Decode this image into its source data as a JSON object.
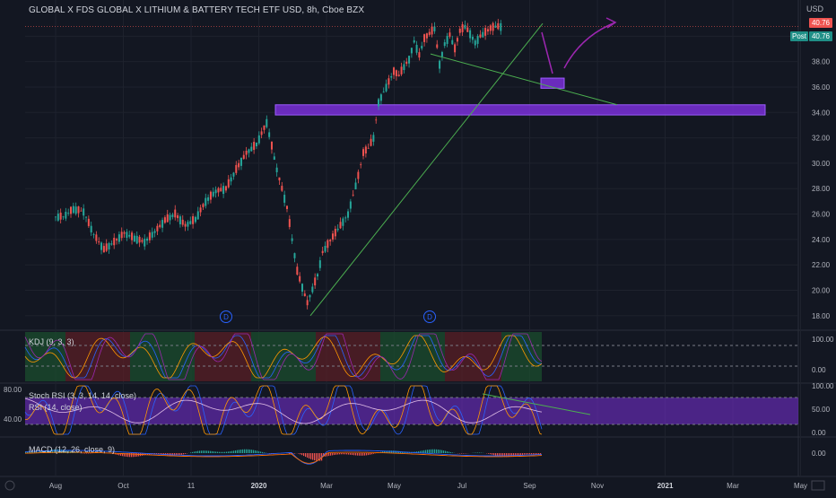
{
  "header": {
    "title": "GLOBAL X FDS GLOBAL X LITHIUM & BATTERY TECH ETF USD, 8h, Cboe BZX",
    "currency": "USD"
  },
  "price_tags": {
    "last": "40.76",
    "post_label": "Post",
    "post_value": "40.76"
  },
  "indicators": {
    "kdj": "KDJ (9, 3, 3)",
    "stoch_rsi": "Stoch RSI (3, 3, 14, 14, close)",
    "rsi": "RSI (14, close)",
    "macd": "MACD (12, 26, close, 9)",
    "rsi_left_upper": "80.00",
    "rsi_left_lower": "40.00"
  },
  "events": [
    {
      "label": "D",
      "month": "Dec"
    },
    {
      "label": "D",
      "month": "Jun"
    }
  ],
  "colors": {
    "background": "#131722",
    "up": "#26a69a",
    "down": "#ef5350",
    "zone": "#7a2fd8",
    "trendline": "#4caf50",
    "kdj_k": "#2962ff",
    "kdj_d": "#ff9800",
    "kdj_j": "#9c27b0",
    "macd_line": "#2962ff",
    "signal_line": "#ff6d00"
  },
  "chart_data": {
    "type": "candlestick",
    "title": "GLOBAL X FDS GLOBAL X LITHIUM & BATTERY TECH ETF USD, 8h, Cboe BZX",
    "x_tick_labels": [
      "Aug",
      "Oct",
      "11",
      "2020",
      "Mar",
      "May",
      "Jul",
      "Sep",
      "Nov",
      "2021",
      "Mar",
      "May"
    ],
    "y_ticks": [
      18.0,
      20.0,
      22.0,
      24.0,
      26.0,
      28.0,
      30.0,
      32.0,
      34.0,
      36.0,
      38.0,
      40.0
    ],
    "ylim": [
      17.0,
      42.0
    ],
    "last_price": 40.76,
    "series": [
      {
        "name": "price",
        "month_index": [
          0,
          0.3,
          0.6,
          0.9,
          1.2,
          1.5,
          1.8,
          2.1,
          2.4,
          2.7,
          3.0,
          3.3,
          3.6,
          3.9,
          4.2,
          4.5,
          4.8,
          5.1,
          5.4,
          5.7,
          6.0,
          6.3,
          6.6,
          6.9,
          7.2,
          7.5,
          7.8,
          7.95,
          8.1,
          8.25,
          8.4,
          8.55,
          8.7,
          8.85,
          9.0,
          9.15,
          9.3,
          9.45,
          9.6,
          9.75,
          9.9,
          10.05,
          10.2,
          10.35,
          10.5,
          10.65,
          10.8,
          10.95,
          11.1,
          11.25,
          11.4,
          11.55,
          11.7,
          11.85,
          12.0,
          12.15,
          12.3,
          12.45,
          12.6,
          12.75,
          12.9,
          13.05
        ],
        "close": [
          25.8,
          26.4,
          26.2,
          24.4,
          23.2,
          23.8,
          24.5,
          24.1,
          23.8,
          24.6,
          25.5,
          26.0,
          25.1,
          25.6,
          27.0,
          27.8,
          28.0,
          29.5,
          30.8,
          31.5,
          33.2,
          29.5,
          26.5,
          21.5,
          19.0,
          21.2,
          23.0,
          23.6,
          24.2,
          24.8,
          25.4,
          26.0,
          27.5,
          29.0,
          30.8,
          31.2,
          32.0,
          34.8,
          35.6,
          36.4,
          37.2,
          36.9,
          37.6,
          38.2,
          39.6,
          38.5,
          39.8,
          40.2,
          40.6,
          37.8,
          39.4,
          40.1,
          39.0,
          40.4,
          40.76,
          40.2,
          39.5,
          40.0,
          40.3,
          40.6,
          40.76,
          40.76
        ]
      }
    ],
    "annotations": {
      "resistance_zone": [
        33.8,
        34.6
      ],
      "target_box": [
        35.9,
        36.7
      ],
      "rising_trendline": [
        [
          8.4,
          18.0
        ],
        [
          13.4,
          41.0
        ]
      ],
      "falling_trendline": [
        [
          10.8,
          38.6
        ],
        [
          14.5,
          34.6
        ]
      ],
      "arrow": "down-then-up"
    },
    "kdj": {
      "levels": [
        100.0,
        0.0
      ],
      "ticks": [
        100.0,
        0.0
      ]
    },
    "stoch_rsi": {
      "ticks": [
        100.0,
        50.0,
        0.0
      ],
      "band": [
        20,
        80
      ]
    },
    "macd": {
      "ticks": [
        0.0
      ]
    },
    "legend": "top-left",
    "grid": true
  }
}
